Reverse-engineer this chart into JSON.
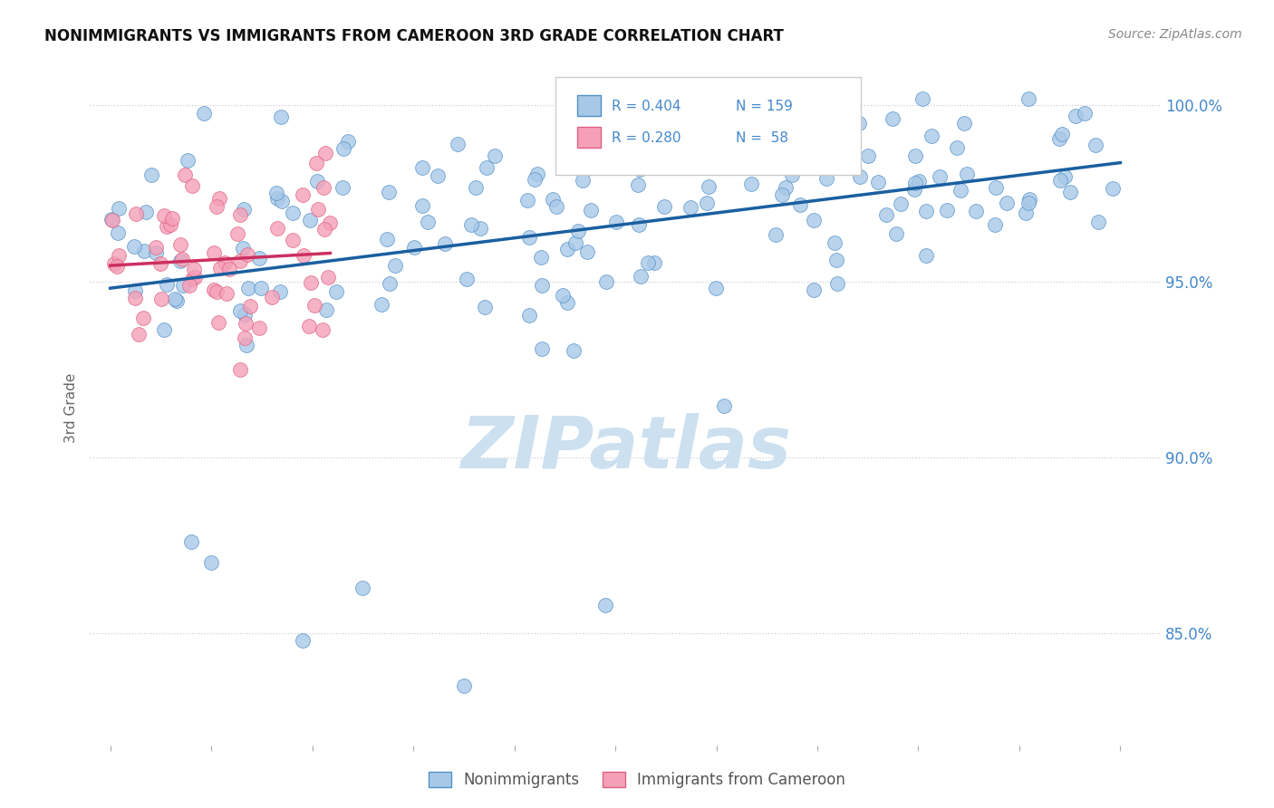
{
  "title": "NONIMMIGRANTS VS IMMIGRANTS FROM CAMEROON 3RD GRADE CORRELATION CHART",
  "source": "Source: ZipAtlas.com",
  "legend_blue_label": "Nonimmigrants",
  "legend_pink_label": "Immigrants from Cameroon",
  "R_blue": 0.404,
  "N_blue": 159,
  "R_pink": 0.28,
  "N_pink": 58,
  "blue_color": "#a8c8e8",
  "blue_edge_color": "#5090c8",
  "blue_line_color": "#1a5fa0",
  "pink_color": "#f4a0b8",
  "pink_edge_color": "#e06080",
  "pink_line_color": "#cc3060",
  "watermark_color": "#cce0f0",
  "grid_color": "#ccccdd",
  "background_color": "#ffffff",
  "axis_label_color": "#4488cc",
  "ylabel_color": "#666666",
  "title_color": "#111111",
  "source_color": "#888888",
  "yticks": [
    0.85,
    0.9,
    0.95,
    1.0
  ],
  "ytick_labels": [
    "85.0%",
    "90.0%",
    "95.0%",
    "100.0%"
  ],
  "ylim": [
    0.818,
    1.01
  ],
  "xlim": [
    -0.02,
    1.04
  ],
  "title_fontsize": 12,
  "axis_tick_fontsize": 12,
  "legend_fontsize": 11,
  "ylabel_text": "3rd Grade"
}
